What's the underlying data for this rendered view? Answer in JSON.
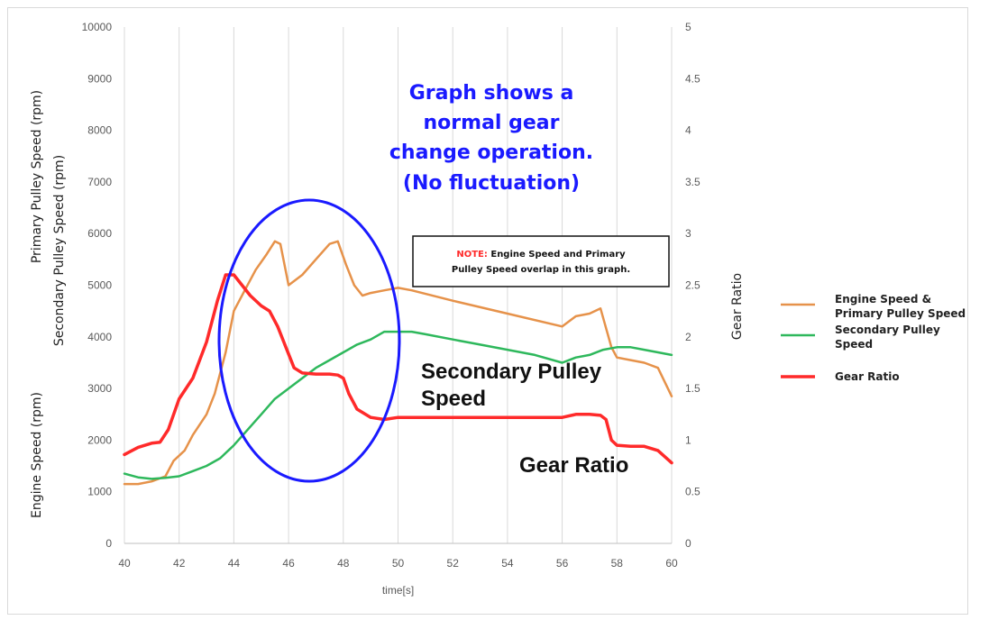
{
  "chart_data": {
    "type": "line",
    "xlabel": "time[s]",
    "x_ticks": [
      "40",
      "42",
      "44",
      "46",
      "48",
      "50",
      "52",
      "54",
      "56",
      "58",
      "60"
    ],
    "xlim": [
      40,
      60
    ],
    "ylim_left": [
      0,
      10000
    ],
    "y_ticks_left": [
      "0",
      "1000",
      "2000",
      "3000",
      "4000",
      "5000",
      "6000",
      "7000",
      "8000",
      "9000",
      "10000"
    ],
    "ylim_right": [
      0,
      5
    ],
    "y_ticks_right": [
      "0",
      "0.5",
      "1",
      "1.5",
      "2",
      "2.5",
      "3",
      "3.5",
      "4",
      "4.5",
      "5"
    ],
    "ylabel_left": [
      "Primary Pulley Speed (rpm)",
      "Secondary Pulley Speed (rpm)",
      "Engine Speed (rpm)"
    ],
    "ylabel_right": "Gear Ratio",
    "grid": "vertical",
    "legend_position": "right",
    "series": [
      {
        "name": "Engine Speed & Primary Pulley Speed",
        "axis": "left",
        "color": "#e6924a",
        "x": [
          40,
          40.5,
          41,
          41.5,
          41.8,
          42.2,
          42.5,
          43,
          43.3,
          43.7,
          44,
          44.4,
          44.8,
          45.2,
          45.5,
          45.7,
          46,
          46.5,
          47,
          47.5,
          47.8,
          48.1,
          48.4,
          48.7,
          49,
          49.5,
          50,
          50.5,
          52,
          54,
          56,
          56.5,
          57,
          57.4,
          57.8,
          58,
          58.5,
          59,
          59.5,
          60
        ],
        "y": [
          1150,
          1150,
          1200,
          1300,
          1600,
          1800,
          2100,
          2500,
          2900,
          3700,
          4500,
          4900,
          5300,
          5600,
          5850,
          5800,
          5000,
          5200,
          5500,
          5800,
          5850,
          5400,
          5000,
          4800,
          4850,
          4900,
          4950,
          4900,
          4700,
          4450,
          4200,
          4400,
          4450,
          4550,
          3800,
          3600,
          3550,
          3500,
          3400,
          2850
        ]
      },
      {
        "name": "Secondary Pulley Speed",
        "axis": "left",
        "color": "#2eb85c",
        "x": [
          40,
          40.5,
          41,
          41.5,
          42,
          42.5,
          43,
          43.5,
          44,
          44.5,
          45,
          45.5,
          46,
          46.5,
          47,
          47.5,
          48,
          48.5,
          49,
          49.5,
          50,
          50.5,
          51,
          52,
          53,
          54,
          55,
          56,
          56.5,
          57,
          57.5,
          58,
          58.5,
          59,
          59.5,
          60
        ],
        "y": [
          1350,
          1280,
          1250,
          1270,
          1300,
          1400,
          1500,
          1650,
          1900,
          2200,
          2500,
          2800,
          3000,
          3200,
          3400,
          3550,
          3700,
          3850,
          3950,
          4100,
          4100,
          4100,
          4050,
          3950,
          3850,
          3750,
          3650,
          3500,
          3600,
          3650,
          3750,
          3800,
          3800,
          3750,
          3700,
          3650
        ]
      },
      {
        "name": "Gear Ratio",
        "axis": "right",
        "color": "#ff2a2a",
        "x": [
          40,
          40.5,
          41,
          41.3,
          41.6,
          42,
          42.5,
          43,
          43.4,
          43.7,
          44,
          44.3,
          44.6,
          45,
          45.3,
          45.6,
          45.9,
          46.2,
          46.5,
          47,
          47.5,
          47.8,
          48,
          48.2,
          48.5,
          49,
          49.5,
          50,
          51,
          52,
          53,
          54,
          55,
          56,
          56.5,
          57,
          57.4,
          57.6,
          57.8,
          58,
          58.5,
          59,
          59.5,
          60
        ],
        "y": [
          0.86,
          0.93,
          0.97,
          0.98,
          1.1,
          1.4,
          1.6,
          1.95,
          2.35,
          2.6,
          2.6,
          2.5,
          2.4,
          2.3,
          2.25,
          2.1,
          1.9,
          1.7,
          1.65,
          1.64,
          1.64,
          1.63,
          1.6,
          1.45,
          1.3,
          1.22,
          1.2,
          1.22,
          1.22,
          1.22,
          1.22,
          1.22,
          1.22,
          1.22,
          1.25,
          1.25,
          1.24,
          1.2,
          1.0,
          0.95,
          0.94,
          0.94,
          0.9,
          0.78
        ]
      }
    ],
    "annotations": {
      "blue_lines": [
        "Graph shows a",
        "normal gear",
        "change operation.",
        "(No fluctuation)"
      ],
      "note_label": "NOTE:",
      "note_line1": "Engine Speed and Primary",
      "note_line2": "Pulley Speed overlap in this graph.",
      "secondary_lines": [
        "Secondary Pulley",
        "Speed"
      ],
      "gear_ratio": "Gear Ratio"
    },
    "legend": [
      {
        "lines": [
          "Engine Speed &",
          "Primary Pulley Speed"
        ],
        "color": "#e6924a"
      },
      {
        "lines": [
          "Secondary Pulley",
          "Speed"
        ],
        "color": "#2eb85c"
      },
      {
        "lines": [
          "Gear Ratio"
        ],
        "color": "#ff2a2a"
      }
    ],
    "highlight_color": "#1a1aff"
  }
}
